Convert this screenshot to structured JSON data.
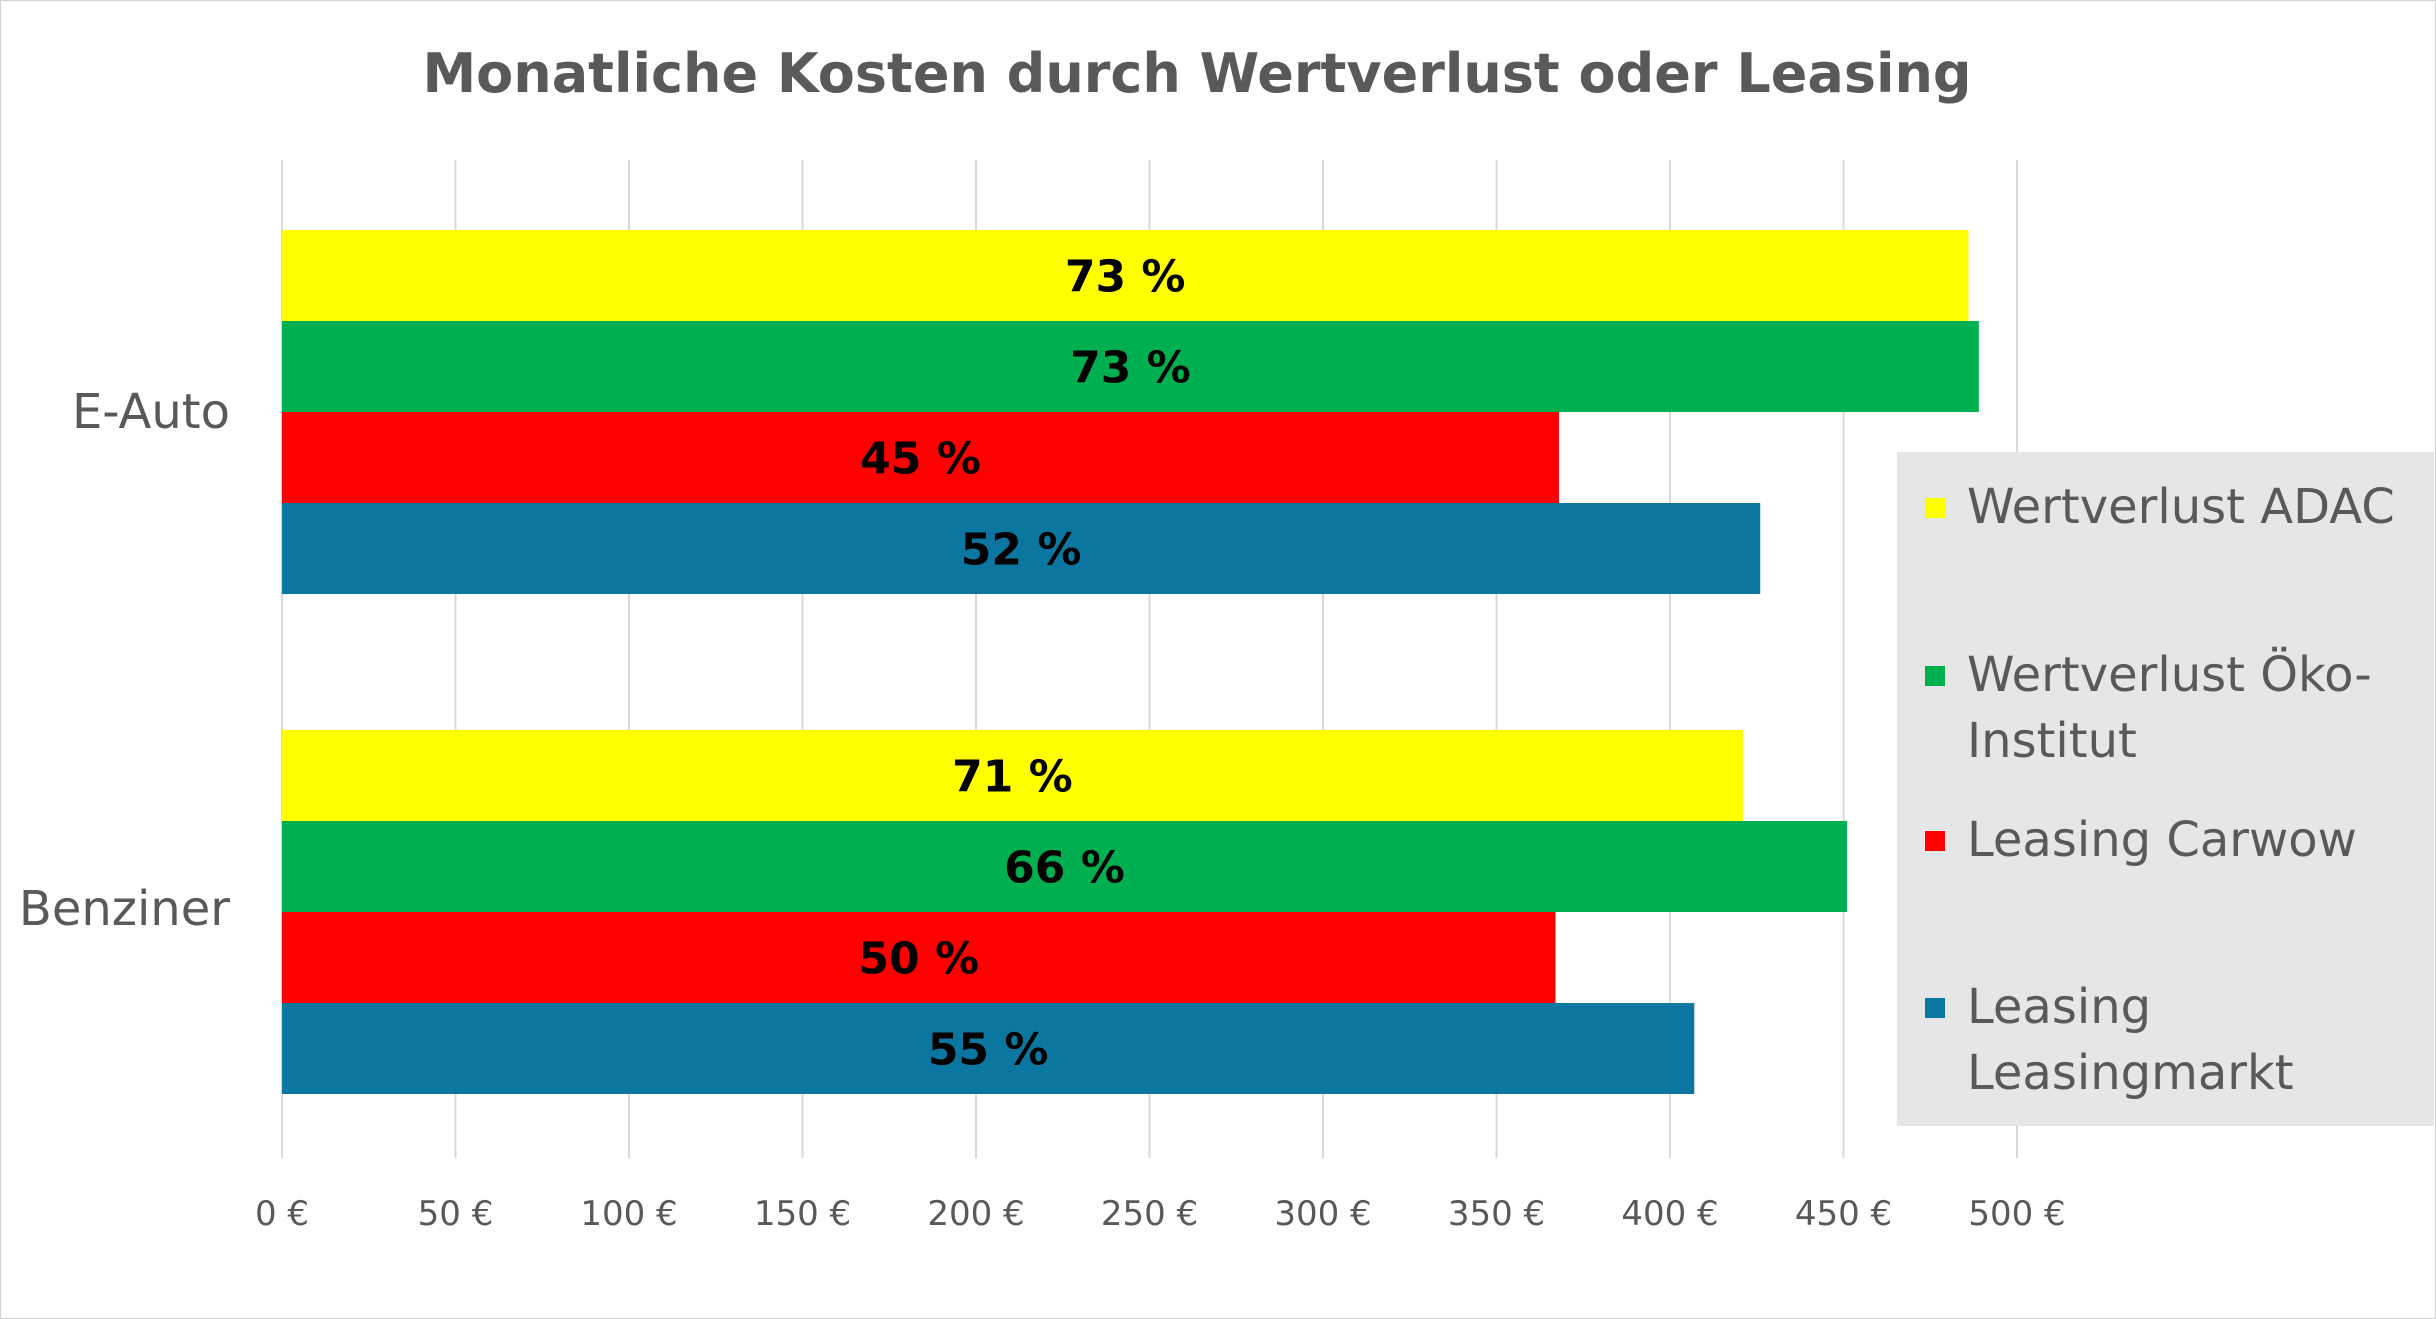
{
  "chart_data": {
    "type": "bar",
    "orientation": "horizontal",
    "title": "Monatliche Kosten durch Wertverlust oder Leasing",
    "categories": [
      "E-Auto",
      "Benziner"
    ],
    "x_ticks": [
      "0 €",
      "50 €",
      "100 €",
      "150 €",
      "200 €",
      "250 €",
      "300 €",
      "350 €",
      "400 €",
      "450 €",
      "500 €"
    ],
    "xlim": [
      0,
      500
    ],
    "grid": true,
    "legend_position": "right",
    "series": [
      {
        "name": "Wertverlust ADAC",
        "color": "#ffff00",
        "values": [
          486,
          421
        ],
        "labels": [
          "73 %",
          "71 %"
        ]
      },
      {
        "name": "Wertverlust Öko-Institut",
        "color": "#00b050",
        "values": [
          489,
          451
        ],
        "labels": [
          "73 %",
          "66 %"
        ]
      },
      {
        "name": "Leasing Carwow",
        "color": "#ff0000",
        "values": [
          368,
          367
        ],
        "labels": [
          "45 %",
          "50 %"
        ]
      },
      {
        "name": "Leasing Leasingmarkt",
        "color": "#0b76a0",
        "values": [
          426,
          407
        ],
        "labels": [
          "52 %",
          "55 %"
        ]
      }
    ]
  }
}
